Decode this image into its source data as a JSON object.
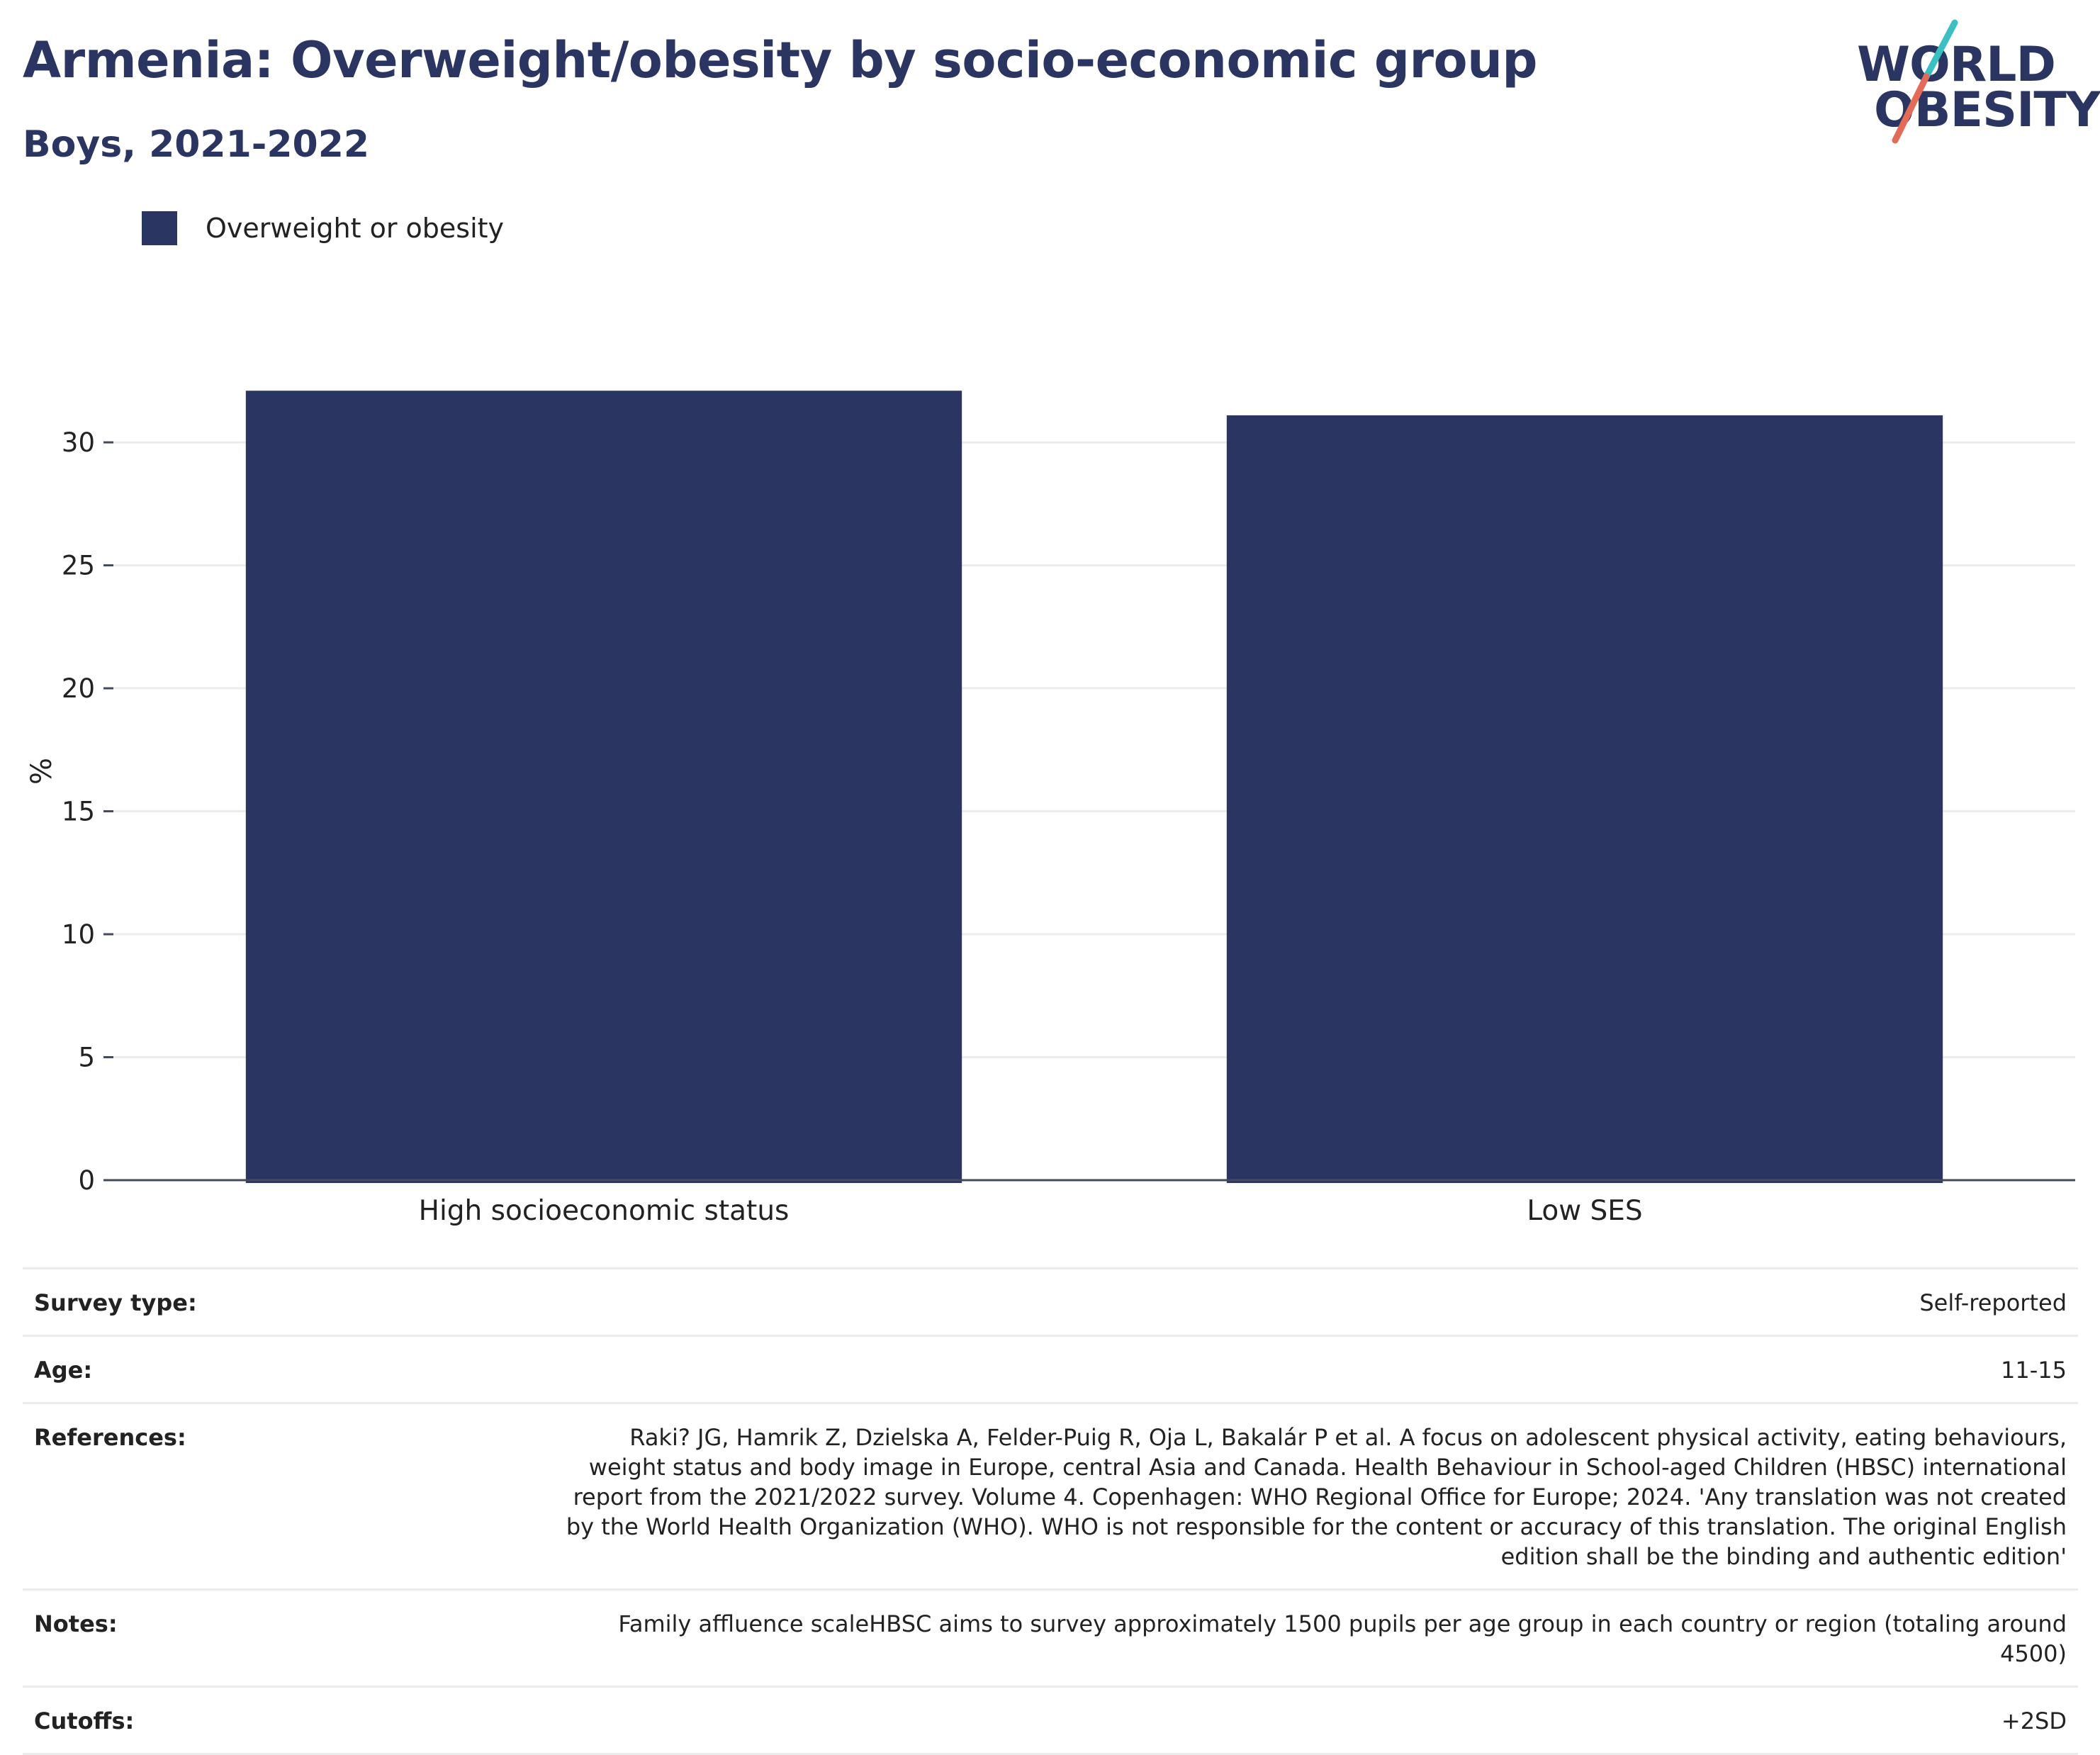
{
  "header": {
    "title": "Armenia: Overweight/obesity by socio-economic group",
    "subtitle": "Boys, 2021-2022"
  },
  "logo": {
    "line1": "WORLD",
    "line2": "OBESITY",
    "accent_colors": [
      "#3bbfc2",
      "#e36b57"
    ]
  },
  "legend": {
    "label": "Overweight or obesity",
    "color": "#2a3562"
  },
  "chart_data": {
    "type": "bar",
    "categories": [
      "High socioeconomic status",
      "Low SES"
    ],
    "series": [
      {
        "name": "Overweight or obesity",
        "values": [
          32.1,
          31.1
        ],
        "color": "#2a3562"
      }
    ],
    "xlabel": "",
    "ylabel": "%",
    "ylim": [
      0,
      33
    ],
    "yticks": [
      0,
      5,
      10,
      15,
      20,
      25,
      30
    ],
    "grid": true
  },
  "meta": [
    {
      "label": "Survey type:",
      "value": "Self-reported"
    },
    {
      "label": "Age:",
      "value": "11-15"
    },
    {
      "label": "References:",
      "value": "Raki? JG, Hamrik Z, Dzielska A, Felder-Puig R, Oja L, Bakalár P et al. A focus on adolescent physical activity, eating behaviours, weight status and body image in Europe, central Asia and Canada. Health Behaviour in School-aged Children (HBSC) international report from the 2021/2022 survey. Volume 4. Copenhagen: WHO Regional Office for Europe; 2024. 'Any translation was not created by the World Health Organization (WHO). WHO is not responsible for the content or accuracy of this translation. The original English edition shall be the binding and authentic edition'"
    },
    {
      "label": "Notes:",
      "value": "Family affluence scaleHBSC aims to survey approximately 1500 pupils per age group in each country or region (totaling around 4500)"
    },
    {
      "label": "Cutoffs:",
      "value": "+2SD"
    }
  ]
}
